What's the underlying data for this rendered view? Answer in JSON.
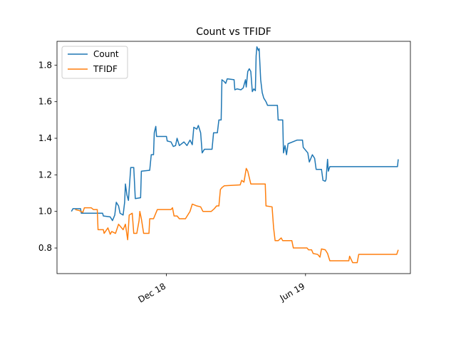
{
  "chart_data": {
    "type": "line",
    "title": "Count vs TFIDF",
    "xlabel": "",
    "ylabel": "",
    "x_is_date": true,
    "xlim": [
      "2018-07-27",
      "2019-11-04"
    ],
    "ylim": [
      0.66,
      1.93
    ],
    "y_ticks": [
      "0.8",
      "1.0",
      "1.2",
      "1.4",
      "1.6",
      "1.8"
    ],
    "x_ticks": [
      {
        "date": "2018-12-18",
        "label": "Dec 18"
      },
      {
        "date": "2019-06-19",
        "label": "Jun 19"
      }
    ],
    "legend": {
      "position": "upper-left"
    },
    "grid": false,
    "series": [
      {
        "name": "Count",
        "color": "#1f77b4",
        "points": [
          [
            "2018-08-15",
            1.0
          ],
          [
            "2018-08-17",
            1.015
          ],
          [
            "2018-08-27",
            1.015
          ],
          [
            "2018-08-28",
            0.99
          ],
          [
            "2018-09-15",
            0.99
          ],
          [
            "2018-09-25",
            0.99
          ],
          [
            "2018-09-26",
            0.975
          ],
          [
            "2018-10-05",
            0.97
          ],
          [
            "2018-10-08",
            0.95
          ],
          [
            "2018-10-11",
            0.98
          ],
          [
            "2018-10-13",
            1.05
          ],
          [
            "2018-10-16",
            1.03
          ],
          [
            "2018-10-18",
            0.99
          ],
          [
            "2018-10-22",
            0.98
          ],
          [
            "2018-10-24",
            1.05
          ],
          [
            "2018-10-25",
            1.15
          ],
          [
            "2018-10-27",
            1.09
          ],
          [
            "2018-10-29",
            1.06
          ],
          [
            "2018-11-01",
            1.24
          ],
          [
            "2018-11-05",
            1.24
          ],
          [
            "2018-11-07",
            1.07
          ],
          [
            "2018-11-14",
            1.075
          ],
          [
            "2018-11-15",
            1.22
          ],
          [
            "2018-11-26",
            1.225
          ],
          [
            "2018-11-28",
            1.31
          ],
          [
            "2018-12-01",
            1.31
          ],
          [
            "2018-12-02",
            1.43
          ],
          [
            "2018-12-04",
            1.465
          ],
          [
            "2018-12-05",
            1.41
          ],
          [
            "2018-12-18",
            1.41
          ],
          [
            "2018-12-19",
            1.385
          ],
          [
            "2018-12-24",
            1.38
          ],
          [
            "2018-12-27",
            1.355
          ],
          [
            "2018-12-30",
            1.36
          ],
          [
            "2019-01-01",
            1.4
          ],
          [
            "2019-01-04",
            1.36
          ],
          [
            "2019-01-10",
            1.38
          ],
          [
            "2019-01-14",
            1.36
          ],
          [
            "2019-01-18",
            1.39
          ],
          [
            "2019-01-21",
            1.365
          ],
          [
            "2019-01-23",
            1.46
          ],
          [
            "2019-01-27",
            1.45
          ],
          [
            "2019-01-29",
            1.47
          ],
          [
            "2019-02-01",
            1.43
          ],
          [
            "2019-02-03",
            1.32
          ],
          [
            "2019-02-06",
            1.34
          ],
          [
            "2019-02-16",
            1.34
          ],
          [
            "2019-02-18",
            1.43
          ],
          [
            "2019-02-23",
            1.43
          ],
          [
            "2019-02-25",
            1.5
          ],
          [
            "2019-02-28",
            1.5
          ],
          [
            "2019-03-01",
            1.72
          ],
          [
            "2019-03-04",
            1.71
          ],
          [
            "2019-03-06",
            1.7
          ],
          [
            "2019-03-08",
            1.725
          ],
          [
            "2019-03-17",
            1.72
          ],
          [
            "2019-03-18",
            1.665
          ],
          [
            "2019-03-21",
            1.67
          ],
          [
            "2019-03-26",
            1.665
          ],
          [
            "2019-03-29",
            1.675
          ],
          [
            "2019-04-01",
            1.72
          ],
          [
            "2019-04-02",
            1.68
          ],
          [
            "2019-04-04",
            1.765
          ],
          [
            "2019-04-06",
            1.78
          ],
          [
            "2019-04-08",
            1.765
          ],
          [
            "2019-04-10",
            1.655
          ],
          [
            "2019-04-12",
            1.67
          ],
          [
            "2019-04-14",
            1.66
          ],
          [
            "2019-04-15",
            1.85
          ],
          [
            "2019-04-16",
            1.9
          ],
          [
            "2019-04-18",
            1.88
          ],
          [
            "2019-04-19",
            1.89
          ],
          [
            "2019-04-21",
            1.72
          ],
          [
            "2019-04-23",
            1.65
          ],
          [
            "2019-04-25",
            1.62
          ],
          [
            "2019-04-28",
            1.6
          ],
          [
            "2019-04-30",
            1.58
          ],
          [
            "2019-05-13",
            1.58
          ],
          [
            "2019-05-14",
            1.5
          ],
          [
            "2019-05-20",
            1.5
          ],
          [
            "2019-05-21",
            1.32
          ],
          [
            "2019-05-23",
            1.36
          ],
          [
            "2019-05-25",
            1.31
          ],
          [
            "2019-05-27",
            1.37
          ],
          [
            "2019-06-08",
            1.39
          ],
          [
            "2019-06-15",
            1.39
          ],
          [
            "2019-06-16",
            1.35
          ],
          [
            "2019-06-22",
            1.32
          ],
          [
            "2019-06-24",
            1.27
          ],
          [
            "2019-06-28",
            1.31
          ],
          [
            "2019-07-01",
            1.29
          ],
          [
            "2019-07-03",
            1.23
          ],
          [
            "2019-07-10",
            1.23
          ],
          [
            "2019-07-12",
            1.17
          ],
          [
            "2019-07-15",
            1.165
          ],
          [
            "2019-07-16",
            1.175
          ],
          [
            "2019-07-18",
            1.285
          ],
          [
            "2019-07-19",
            1.22
          ],
          [
            "2019-07-21",
            1.245
          ],
          [
            "2019-10-18",
            1.245
          ],
          [
            "2019-10-19",
            1.285
          ]
        ]
      },
      {
        "name": "TFIDF",
        "color": "#ff7f0e",
        "points": [
          [
            "2018-08-20",
            1.01
          ],
          [
            "2018-08-25",
            1.005
          ],
          [
            "2018-08-30",
            0.995
          ],
          [
            "2018-09-01",
            1.02
          ],
          [
            "2018-09-10",
            1.02
          ],
          [
            "2018-09-13",
            1.01
          ],
          [
            "2018-09-18",
            1.01
          ],
          [
            "2018-09-19",
            0.9
          ],
          [
            "2018-09-26",
            0.9
          ],
          [
            "2018-09-27",
            0.88
          ],
          [
            "2018-10-02",
            0.91
          ],
          [
            "2018-10-05",
            0.875
          ],
          [
            "2018-10-07",
            0.89
          ],
          [
            "2018-10-12",
            0.88
          ],
          [
            "2018-10-16",
            0.93
          ],
          [
            "2018-10-22",
            0.9
          ],
          [
            "2018-10-25",
            0.93
          ],
          [
            "2018-10-28",
            0.845
          ],
          [
            "2018-10-30",
            0.98
          ],
          [
            "2018-11-03",
            0.99
          ],
          [
            "2018-11-05",
            0.88
          ],
          [
            "2018-11-09",
            0.88
          ],
          [
            "2018-11-12",
            0.95
          ],
          [
            "2018-11-13",
            1.0
          ],
          [
            "2018-11-15",
            0.96
          ],
          [
            "2018-11-18",
            0.88
          ],
          [
            "2018-11-25",
            0.88
          ],
          [
            "2018-11-26",
            0.96
          ],
          [
            "2018-11-28",
            0.96
          ],
          [
            "2018-12-01",
            0.96
          ],
          [
            "2018-12-06",
            1.01
          ],
          [
            "2018-12-24",
            1.01
          ],
          [
            "2018-12-26",
            1.02
          ],
          [
            "2018-12-28",
            0.975
          ],
          [
            "2019-01-01",
            0.975
          ],
          [
            "2019-01-04",
            0.96
          ],
          [
            "2019-01-12",
            0.96
          ],
          [
            "2019-01-15",
            0.98
          ],
          [
            "2019-01-18",
            1.0
          ],
          [
            "2019-01-21",
            1.04
          ],
          [
            "2019-01-27",
            1.03
          ],
          [
            "2019-02-01",
            1.025
          ],
          [
            "2019-02-04",
            1.0
          ],
          [
            "2019-02-15",
            1.0
          ],
          [
            "2019-02-19",
            1.015
          ],
          [
            "2019-02-22",
            1.03
          ],
          [
            "2019-02-25",
            1.03
          ],
          [
            "2019-02-27",
            1.12
          ],
          [
            "2019-03-01",
            1.13
          ],
          [
            "2019-03-04",
            1.14
          ],
          [
            "2019-03-25",
            1.145
          ],
          [
            "2019-03-27",
            1.17
          ],
          [
            "2019-03-30",
            1.16
          ],
          [
            "2019-04-02",
            1.235
          ],
          [
            "2019-04-04",
            1.22
          ],
          [
            "2019-04-06",
            1.185
          ],
          [
            "2019-04-08",
            1.15
          ],
          [
            "2019-04-27",
            1.15
          ],
          [
            "2019-04-28",
            1.03
          ],
          [
            "2019-05-06",
            1.025
          ],
          [
            "2019-05-08",
            0.91
          ],
          [
            "2019-05-10",
            0.84
          ],
          [
            "2019-05-14",
            0.84
          ],
          [
            "2019-05-18",
            0.855
          ],
          [
            "2019-05-20",
            0.84
          ],
          [
            "2019-06-01",
            0.84
          ],
          [
            "2019-06-03",
            0.8
          ],
          [
            "2019-06-21",
            0.8
          ],
          [
            "2019-06-23",
            0.79
          ],
          [
            "2019-06-27",
            0.79
          ],
          [
            "2019-06-29",
            0.77
          ],
          [
            "2019-07-05",
            0.765
          ],
          [
            "2019-07-08",
            0.75
          ],
          [
            "2019-07-10",
            0.795
          ],
          [
            "2019-07-15",
            0.79
          ],
          [
            "2019-07-18",
            0.77
          ],
          [
            "2019-07-21",
            0.73
          ],
          [
            "2019-08-15",
            0.73
          ],
          [
            "2019-08-16",
            0.755
          ],
          [
            "2019-08-20",
            0.72
          ],
          [
            "2019-08-26",
            0.72
          ],
          [
            "2019-08-28",
            0.765
          ],
          [
            "2019-10-17",
            0.765
          ],
          [
            "2019-10-19",
            0.79
          ]
        ]
      }
    ]
  }
}
